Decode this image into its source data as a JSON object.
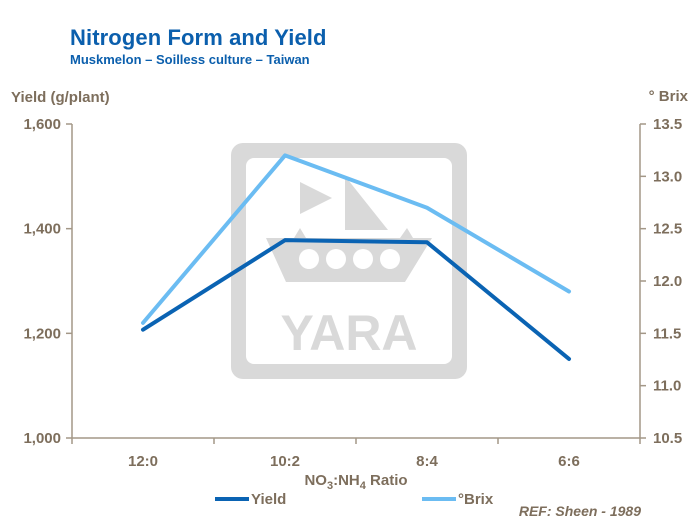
{
  "header": {
    "title": "Nitrogen Form and Yield",
    "subtitle": "Muskmelon – Soilless culture – Taiwan"
  },
  "reference": "REF: Sheen - 1989",
  "watermark": {
    "text": "YARA",
    "color": "#d9d9d9"
  },
  "colors": {
    "axis": "#a39787",
    "text": "#7d6e5c",
    "title": "#0b5fad",
    "yield": "#0a63b3",
    "brix": "#6bbcf2"
  },
  "chart_data": {
    "type": "line",
    "title": "Nitrogen Form and Yield",
    "subtitle": "Muskmelon – Soilless culture – Taiwan",
    "xlabel": "NO3:NH4 Ratio",
    "categories": [
      "12:0",
      "10:2",
      "8:4",
      "6:6"
    ],
    "y_left": {
      "label": "Yield (g/plant)",
      "lim": [
        1000,
        1600
      ],
      "ticks": [
        1000,
        1200,
        1400,
        1600
      ],
      "tick_labels": [
        "1,000",
        "1,200",
        "1,400",
        "1,600"
      ]
    },
    "y_right": {
      "label": "° Brix",
      "lim": [
        10.5,
        13.5
      ],
      "ticks": [
        10.5,
        11.0,
        11.5,
        12.0,
        12.5,
        13.0,
        13.5
      ],
      "tick_labels": [
        "10.5",
        "11.0",
        "11.5",
        "12.0",
        "12.5",
        "13.0",
        "13.5"
      ]
    },
    "series": [
      {
        "name": "Yield",
        "axis": "left",
        "color": "#0a63b3",
        "values": [
          1207,
          1378,
          1374,
          1151
        ]
      },
      {
        "name": "°Brix",
        "axis": "right",
        "color": "#6bbcf2",
        "values": [
          11.6,
          13.2,
          12.7,
          11.9
        ]
      }
    ],
    "legend": "bottom",
    "grid": false
  }
}
